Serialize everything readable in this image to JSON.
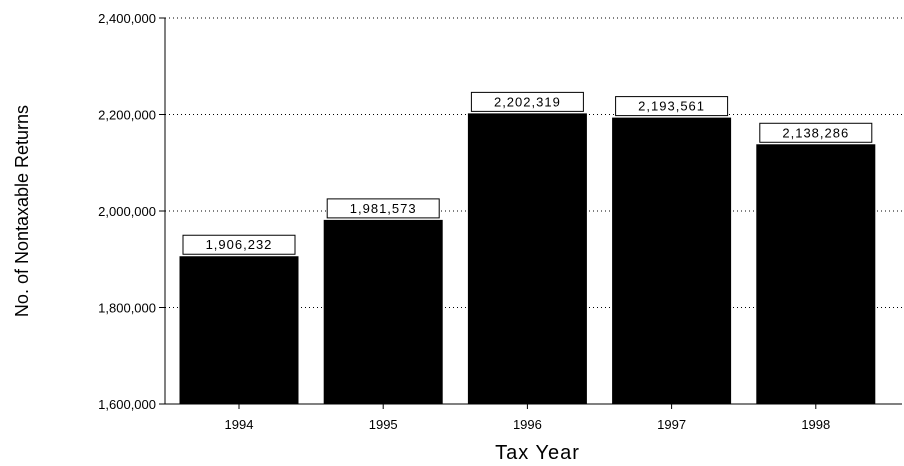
{
  "chart_data": {
    "type": "bar",
    "categories": [
      "1994",
      "1995",
      "1996",
      "1997",
      "1998"
    ],
    "values": [
      1906232,
      1981573,
      2202319,
      2193561,
      2138286
    ],
    "value_labels": [
      "1,906,232",
      "1,981,573",
      "2,202,319",
      "2,193,561",
      "2,138,286"
    ],
    "xlabel": "Tax Year",
    "ylabel": "No. of Nontaxable Returns",
    "ylim": [
      1600000,
      2400000
    ],
    "yticks": [
      1600000,
      1800000,
      2000000,
      2200000,
      2400000
    ],
    "ytick_labels": [
      "1,600,000",
      "1,800,000",
      "2,000,000",
      "2,200,000",
      "2,400,000"
    ],
    "grid": true,
    "bar_color": "#000000"
  }
}
